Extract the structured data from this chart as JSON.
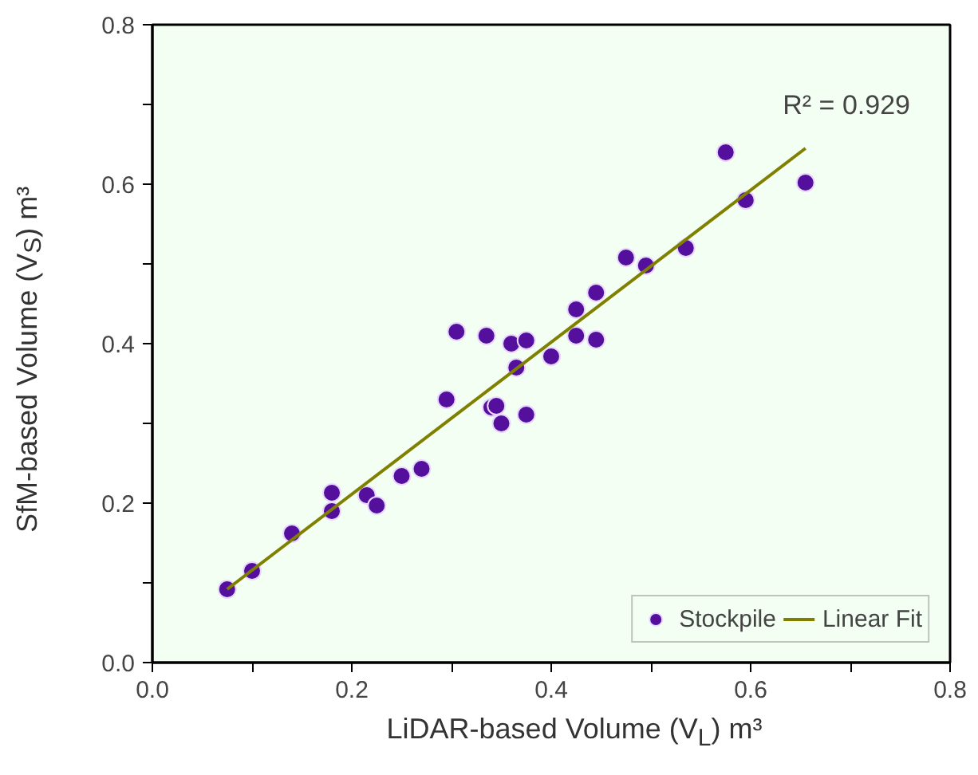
{
  "chart_data": {
    "type": "scatter",
    "xlabel": "LiDAR-based Volume (V$_{L}$) m³",
    "ylabel": "SfM-based Volume (V$_{S}$) m³",
    "annotations": [
      "R² = 0.929"
    ],
    "xlim": [
      0,
      0.8
    ],
    "ylim": [
      0,
      0.8
    ],
    "xticks": [
      {
        "value": 0,
        "label": "0.0"
      },
      {
        "value": 0.1,
        "label": null
      },
      0.2,
      {
        "value": 0.3,
        "label": null
      },
      0.4,
      {
        "value": 0.5,
        "label": null
      },
      0.6,
      {
        "value": 0.7,
        "label": null
      },
      0.8
    ],
    "yticks": [
      {
        "value": 0,
        "label": "0.0"
      },
      {
        "value": 0.1,
        "label": null
      },
      0.2,
      {
        "value": 0.3,
        "label": null
      },
      0.4,
      {
        "value": 0.5,
        "label": null
      },
      0.6,
      {
        "value": 0.7,
        "label": null
      },
      0.8
    ],
    "grid": false,
    "legend": "bottom right",
    "series": [
      {
        "name": "Stockpile",
        "marker": "circle",
        "color": "#54109c",
        "x": [
          0.075,
          0.1,
          0.14,
          0.18,
          0.18,
          0.215,
          0.225,
          0.25,
          0.27,
          0.295,
          0.305,
          0.335,
          0.34,
          0.345,
          0.35,
          0.36,
          0.365,
          0.375,
          0.375,
          0.4,
          0.425,
          0.425,
          0.445,
          0.445,
          0.475,
          0.495,
          0.535,
          0.575,
          0.595,
          0.655
        ],
        "values": [
          0.092,
          0.115,
          0.162,
          0.19,
          0.213,
          0.21,
          0.197,
          0.234,
          0.243,
          0.33,
          0.415,
          0.41,
          0.32,
          0.322,
          0.3,
          0.4,
          0.37,
          0.404,
          0.311,
          0.384,
          0.41,
          0.443,
          0.405,
          0.464,
          0.508,
          0.498,
          0.52,
          0.64,
          0.58,
          0.602
        ]
      },
      {
        "name": "Linear Fit",
        "type": "line",
        "color": "#808000",
        "x": [
          0.075,
          0.655
        ],
        "values": [
          0.092,
          0.645
        ]
      }
    ]
  }
}
